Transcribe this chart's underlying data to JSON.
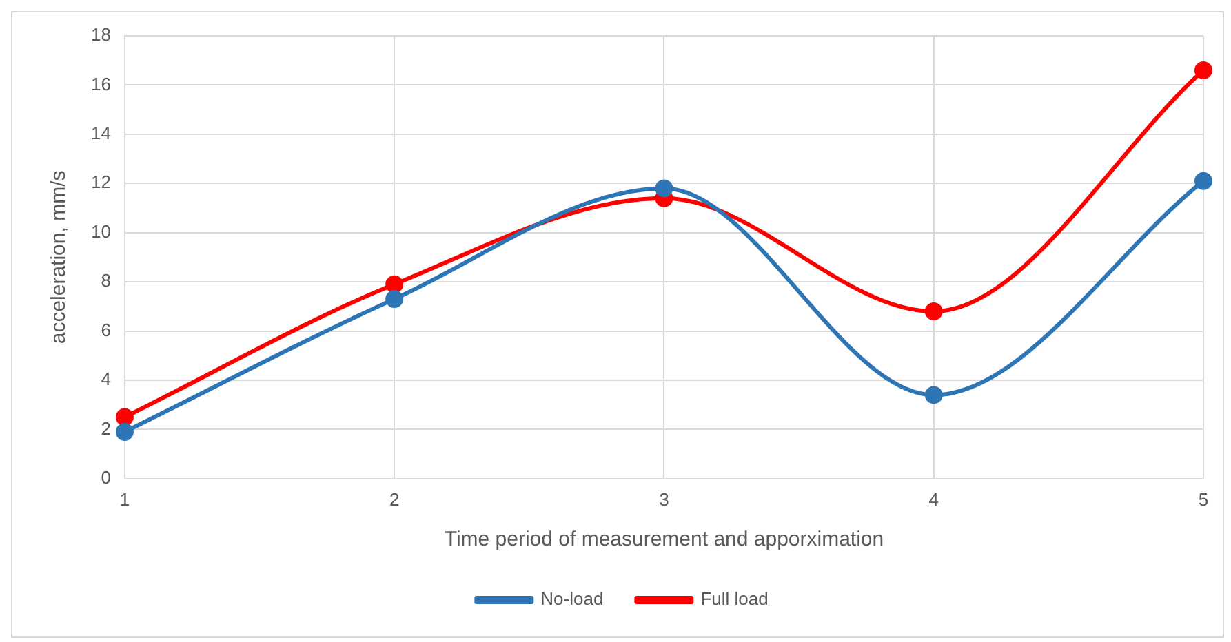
{
  "chart_data": {
    "type": "line",
    "xlabel": "Time period of measurement and apporximation",
    "ylabel": "acceleration, mm/s",
    "x": [
      1,
      2,
      3,
      4,
      5
    ],
    "xlim": [
      1,
      5
    ],
    "xticks": [
      1,
      2,
      3,
      4,
      5
    ],
    "ylim": [
      0,
      18
    ],
    "yticks": [
      0,
      2,
      4,
      6,
      8,
      10,
      12,
      14,
      16,
      18
    ],
    "grid": true,
    "legend": "bottom",
    "marker": "circle",
    "line_style": "solid",
    "series": [
      {
        "name": "No-load",
        "color": "#2e75b6",
        "values": [
          1.9,
          7.3,
          11.8,
          3.4,
          12.1
        ]
      },
      {
        "name": "Full load",
        "color": "#ff0000",
        "values": [
          2.5,
          7.9,
          11.4,
          6.8,
          16.6
        ]
      }
    ]
  }
}
